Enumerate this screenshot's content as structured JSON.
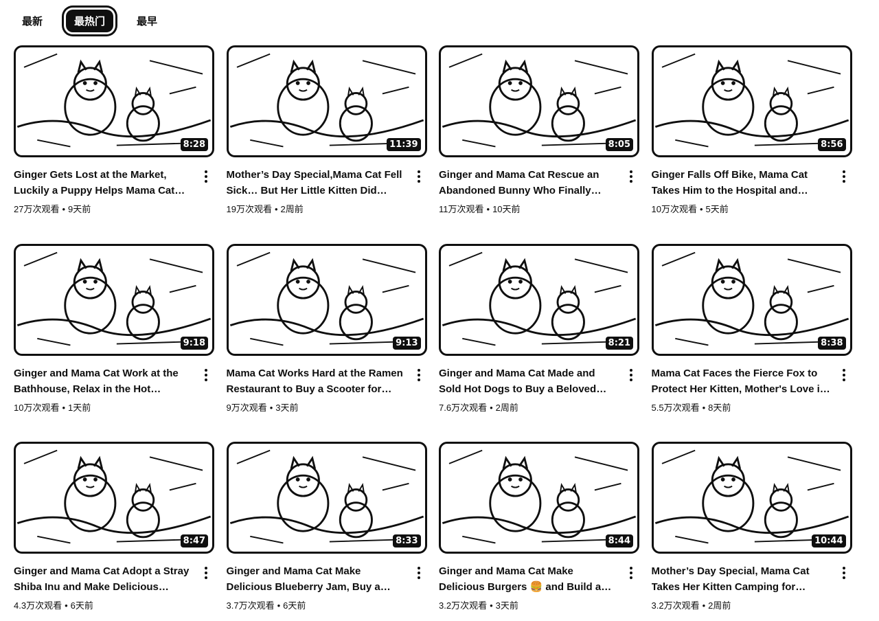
{
  "chips": [
    "最新",
    "最热门",
    "最早"
  ],
  "active_chip": 1,
  "videos": [
    {
      "title": "Ginger Gets Lost at the Market, Luckily a Puppy Helps Mama Cat…",
      "duration": "8:28",
      "views": "27万次观看",
      "age": "9天前"
    },
    {
      "title": "Mother’s Day Special,Mama Cat Fell Sick… But Her Little Kitten Did…",
      "duration": "11:39",
      "views": "19万次观看",
      "age": "2周前"
    },
    {
      "title": "Ginger and Mama Cat Rescue an Abandoned Bunny Who Finally Fee…",
      "duration": "8:05",
      "views": "11万次观看",
      "age": "10天前"
    },
    {
      "title": "Ginger Falls Off Bike, Mama Cat Takes Him to the Hospital and…",
      "duration": "8:56",
      "views": "10万次观看",
      "age": "5天前"
    },
    {
      "title": "Ginger and Mama Cat Work at the Bathhouse, Relax in the Hot Spring…",
      "duration": "9:18",
      "views": "10万次观看",
      "age": "1天前"
    },
    {
      "title": "Mama Cat Works Hard at the Ramen Restaurant to Buy a Scooter for…",
      "duration": "9:13",
      "views": "9万次观看",
      "age": "3天前"
    },
    {
      "title": "Ginger and Mama Cat Made and Sold Hot Dogs to Buy a Beloved To…",
      "duration": "8:21",
      "views": "7.6万次观看",
      "age": "2周前"
    },
    {
      "title": "Mama Cat Faces the Fierce Fox to Protect Her Kitten, Mother's Love i…",
      "duration": "8:38",
      "views": "5.5万次观看",
      "age": "8天前"
    },
    {
      "title": "Ginger and Mama Cat Adopt a Stray Shiba Inu and Make Delicious…",
      "duration": "8:47",
      "views": "4.3万次观看",
      "age": "6天前"
    },
    {
      "title": "Ginger and Mama Cat Make Delicious Blueberry Jam, Buy a…",
      "duration": "8:33",
      "views": "3.7万次观看",
      "age": "6天前"
    },
    {
      "title": "Ginger and Mama Cat Make Delicious Burgers 🍔 and Build a…",
      "duration": "8:44",
      "views": "3.2万次观看",
      "age": "3天前"
    },
    {
      "title": "Mother’s Day Special, Mama Cat Takes Her Kitten Camping for…",
      "duration": "10:44",
      "views": "3.2万次观看",
      "age": "2周前"
    }
  ]
}
